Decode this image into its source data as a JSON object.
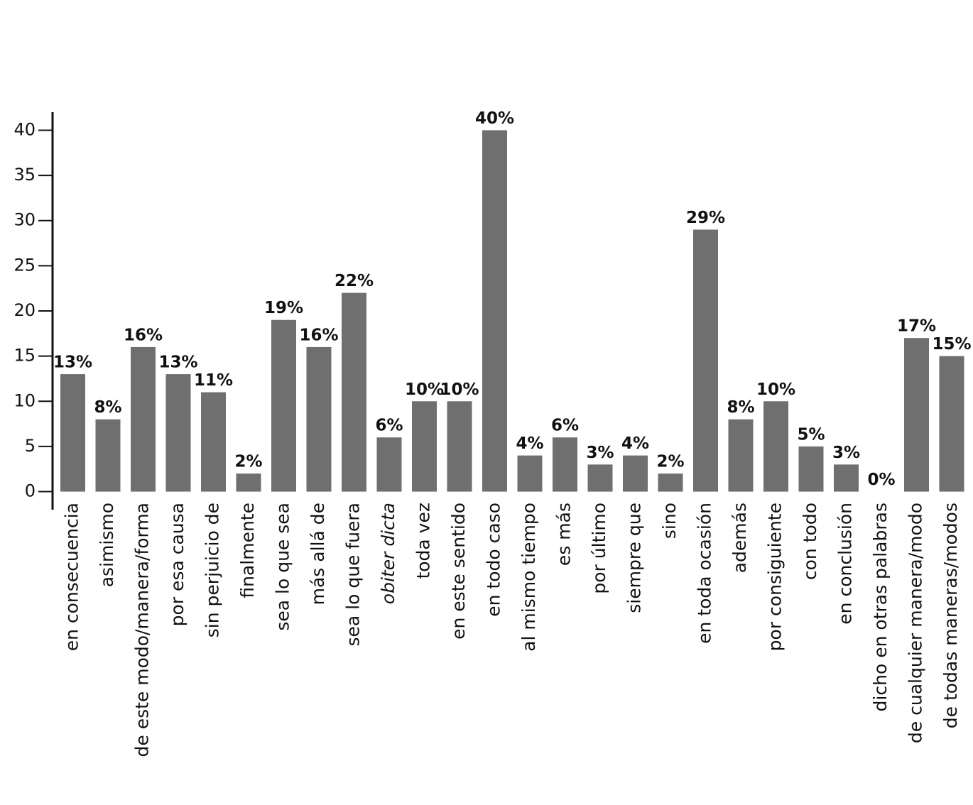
{
  "chart_data": {
    "type": "bar",
    "categories": [
      "en consecuencia",
      "asimismo",
      "de este modo/manera/forma",
      "por esa causa",
      "sin perjuicio de",
      "finalmente",
      "sea lo que sea",
      "más allá de",
      "sea lo que fuera",
      "obiter dicta",
      "toda vez",
      "en este sentido",
      "en todo caso",
      "al mismo tiempo",
      "es más",
      "por último",
      "siempre que",
      "sino",
      "en toda ocasión",
      "además",
      "por consiguiente",
      "con todo",
      "en conclusión",
      "dicho en otras palabras",
      "de cualquier manera/modo",
      "de todas maneras/modos"
    ],
    "values": [
      13,
      8,
      16,
      13,
      11,
      2,
      19,
      16,
      22,
      6,
      10,
      10,
      40,
      4,
      6,
      3,
      4,
      2,
      29,
      8,
      10,
      5,
      3,
      0,
      17,
      15
    ],
    "value_labels": [
      "13%",
      "8%",
      "16%",
      "13%",
      "11%",
      "2%",
      "19%",
      "16%",
      "22%",
      "6%",
      "10%",
      "10%",
      "40%",
      "4%",
      "6%",
      "3%",
      "4%",
      "2%",
      "29%",
      "8%",
      "10%",
      "5%",
      "3%",
      "0%",
      "17%",
      "15%"
    ],
    "color": "#6f6f6f",
    "ylim": [
      -2,
      42
    ],
    "yticks": [
      0,
      5,
      10,
      15,
      20,
      25,
      30,
      35,
      40
    ],
    "grid": false
  }
}
